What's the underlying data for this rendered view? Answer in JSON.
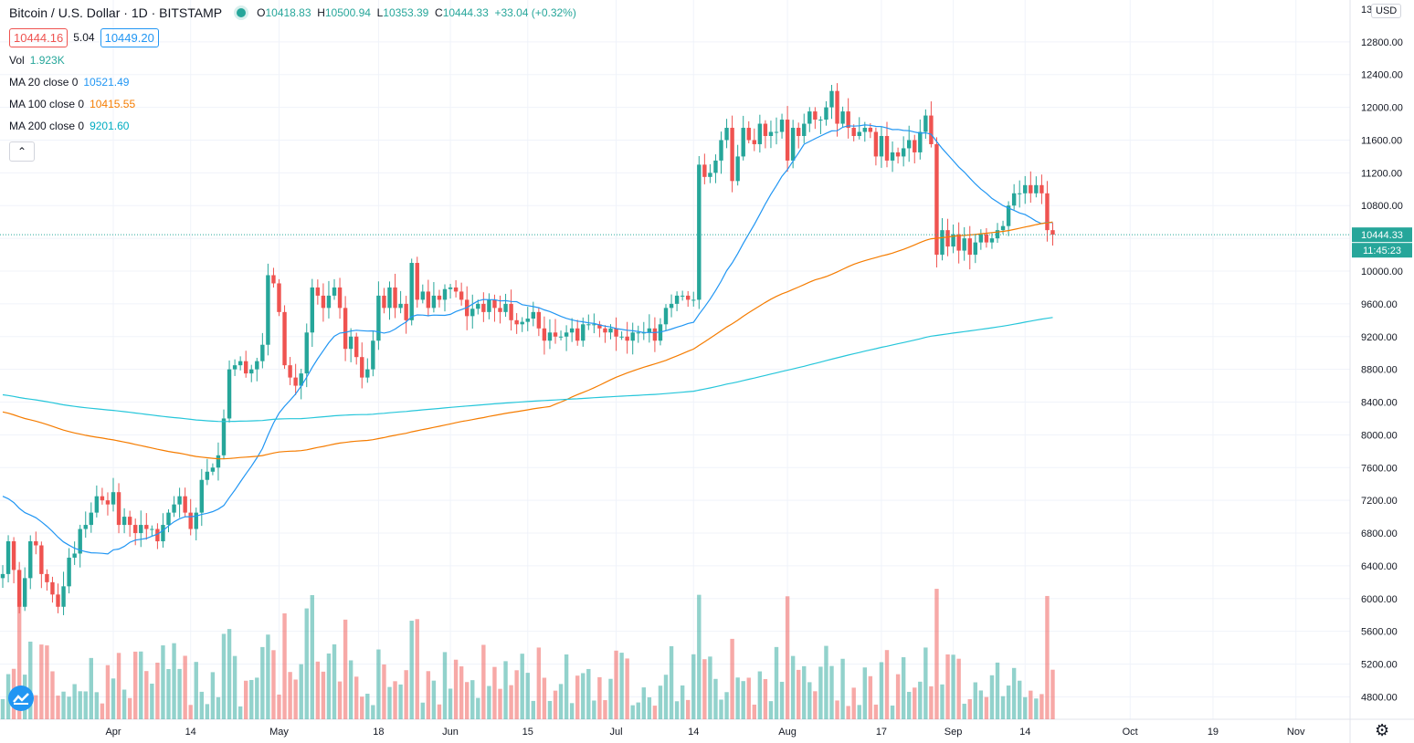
{
  "header": {
    "symbol": "Bitcoin / U.S. Dollar · 1D · BITSTAMP",
    "open_label": "O",
    "open": "10418.83",
    "high_label": "H",
    "high": "10500.94",
    "low_label": "L",
    "low": "10353.39",
    "close_label": "C",
    "close": "10444.33",
    "change": "+33.04 (+0.32%)",
    "bid": "10444.16",
    "spread": "5.04",
    "ask": "10449.20"
  },
  "indicators": {
    "vol_label": "Vol",
    "vol_value": "1.923K",
    "ma20_label": "MA 20 close 0",
    "ma20_value": "10521.49",
    "ma100_label": "MA 100 close 0",
    "ma100_value": "10415.55",
    "ma200_label": "MA 200 close 0",
    "ma200_value": "9201.60",
    "collapse_icon": "chevron-up-icon"
  },
  "currency": "USD",
  "last_price_tag": "10444.33",
  "countdown_tag": "11:45:23",
  "colors": {
    "up": "#26a69a",
    "down": "#ef5350",
    "ma20": "#2196f3",
    "ma100": "#f57c00",
    "ma200": "#26c6da",
    "grid": "#f0f3fa"
  },
  "chart_data": {
    "type": "candlestick",
    "y_ticks": [
      4800,
      5200,
      5600,
      6000,
      6400,
      6800,
      7200,
      7600,
      8000,
      8400,
      8800,
      9200,
      9600,
      10000,
      10400,
      10800,
      11200,
      11600,
      12000,
      12400,
      12800
    ],
    "y_top_tick_partial": "13",
    "x_ticks": [
      "Apr",
      "14",
      "May",
      "18",
      "Jun",
      "15",
      "Jul",
      "14",
      "Aug",
      "17",
      "Sep",
      "14",
      "Oct",
      "19",
      "Nov"
    ],
    "x_tick_days": [
      20,
      34,
      50,
      68,
      81,
      95,
      111,
      125,
      142,
      159,
      172,
      185,
      204,
      219,
      234
    ],
    "close": [
      6300,
      6700,
      6350,
      5900,
      6250,
      6700,
      6650,
      6300,
      6200,
      6050,
      5900,
      6150,
      6500,
      6550,
      6850,
      6900,
      7050,
      7250,
      7200,
      7150,
      7300,
      6900,
      7000,
      6900,
      6800,
      6900,
      6850,
      6850,
      6700,
      6900,
      7050,
      7150,
      7250,
      7050,
      6850,
      7050,
      7450,
      7550,
      7600,
      7750,
      8200,
      8800,
      8850,
      8900,
      8750,
      8800,
      8900,
      9100,
      9950,
      9850,
      9500,
      8850,
      8700,
      8600,
      8750,
      9250,
      9800,
      9700,
      9550,
      9700,
      9800,
      9550,
      9050,
      9200,
      8950,
      8700,
      8800,
      9150,
      9700,
      9550,
      9800,
      9550,
      9600,
      9400,
      10100,
      9650,
      9750,
      9550,
      9700,
      9650,
      9780,
      9800,
      9750,
      9650,
      9450,
      9540,
      9600,
      9500,
      9650,
      9550,
      9500,
      9600,
      9400,
      9350,
      9380,
      9420,
      9500,
      9300,
      9150,
      9250,
      9200,
      9200,
      9250,
      9300,
      9150,
      9350,
      9350,
      9350,
      9300,
      9250,
      9300,
      9200,
      9200,
      9150,
      9250,
      9250,
      9250,
      9300,
      9150,
      9350,
      9550,
      9600,
      9700,
      9700,
      9650,
      9650,
      11300,
      11150,
      11200,
      11350,
      11600,
      11750,
      11100,
      11400,
      11750,
      11600,
      11550,
      11800,
      11650,
      11700,
      11700,
      11850,
      11350,
      11750,
      11650,
      11800,
      11950,
      11850,
      11850,
      12000,
      12200,
      11800,
      11950,
      11750,
      11650,
      11700,
      11750,
      11700,
      11400,
      11650,
      11350,
      11450,
      11400,
      11500,
      11600,
      11450,
      11700,
      11900,
      11550,
      10200,
      10500,
      10300,
      10450,
      10250,
      10400,
      10200,
      10350,
      10450,
      10350,
      10400,
      10500,
      10550,
      10800,
      10950,
      10950,
      11050,
      10950,
      11050,
      10950,
      10500,
      10444
    ]
  }
}
